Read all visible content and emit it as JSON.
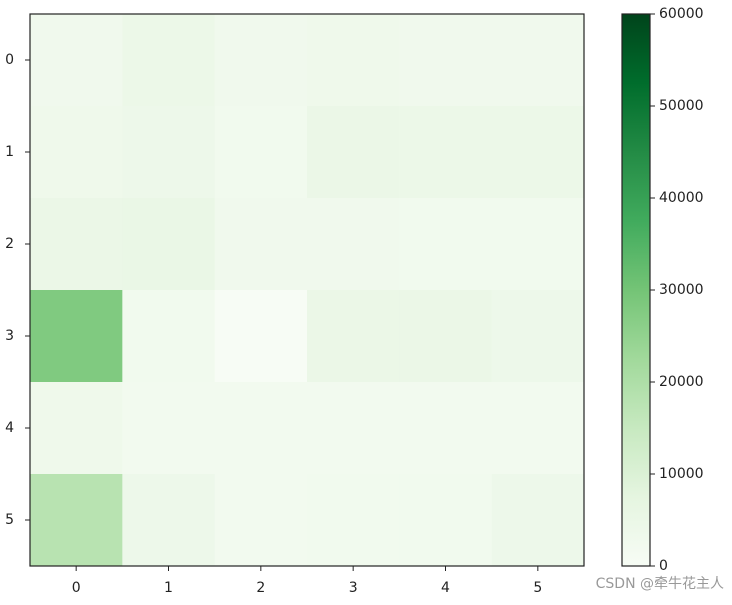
{
  "chart_data": {
    "type": "heatmap",
    "colormap": "Greens",
    "z": [
      [
        3000,
        4500,
        3000,
        3500,
        3000,
        3000
      ],
      [
        3500,
        4000,
        2500,
        5000,
        4500,
        4500
      ],
      [
        5000,
        5500,
        3000,
        3000,
        2500,
        2500
      ],
      [
        28000,
        2500,
        0,
        5000,
        5000,
        4000
      ],
      [
        3500,
        2000,
        2000,
        2000,
        2000,
        2000
      ],
      [
        18000,
        4000,
        2000,
        2500,
        2500,
        4000
      ]
    ],
    "xlim": [
      -0.5,
      5.5
    ],
    "ylim": [
      5.5,
      -0.5
    ],
    "xticks": [
      0,
      1,
      2,
      3,
      4,
      5
    ],
    "yticks": [
      0,
      1,
      2,
      3,
      4,
      5
    ],
    "clim": [
      0,
      60000
    ],
    "cticks": [
      0,
      10000,
      20000,
      30000,
      40000,
      50000,
      60000
    ],
    "watermark": "CSDN @牵牛花主人"
  }
}
